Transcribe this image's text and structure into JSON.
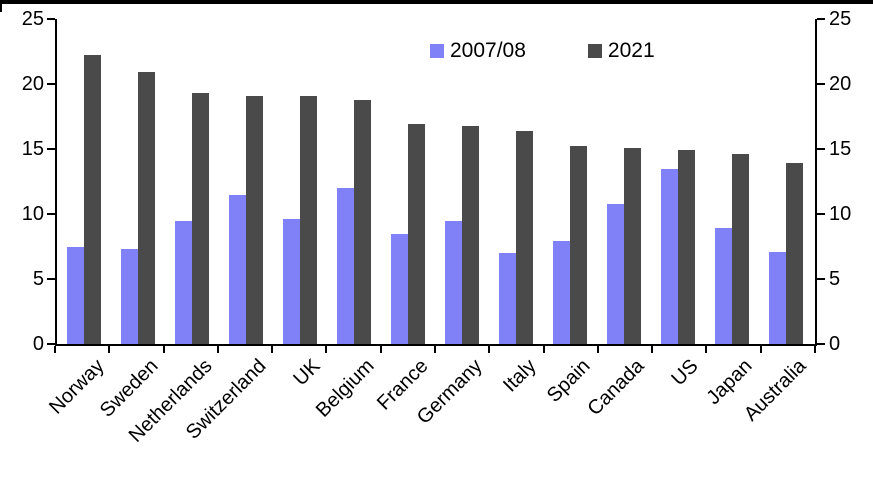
{
  "chart_data": {
    "type": "bar",
    "title": "",
    "xlabel": "",
    "ylabel": "",
    "categories": [
      "Norway",
      "Sweden",
      "Netherlands",
      "Switzerland",
      "UK",
      "Belgium",
      "France",
      "Germany",
      "Italy",
      "Spain",
      "Canada",
      "US",
      "Japan",
      "Australia"
    ],
    "series": [
      {
        "name": "2007/08",
        "color": "#8181f7",
        "values": [
          7.5,
          7.3,
          9.5,
          11.5,
          9.6,
          12.0,
          8.5,
          9.5,
          7.0,
          7.9,
          10.8,
          13.5,
          8.9,
          7.1
        ]
      },
      {
        "name": "2021",
        "color": "#4a4a4a",
        "values": [
          22.2,
          20.9,
          19.3,
          19.1,
          19.1,
          18.8,
          16.9,
          16.8,
          16.4,
          15.2,
          15.1,
          14.9,
          14.6,
          13.9
        ]
      }
    ],
    "ylim": [
      0,
      25
    ],
    "yticks": [
      0,
      5,
      10,
      15,
      20,
      25
    ],
    "dual_y_axis": true,
    "grid": false,
    "legend_position": "top-center-inside"
  }
}
